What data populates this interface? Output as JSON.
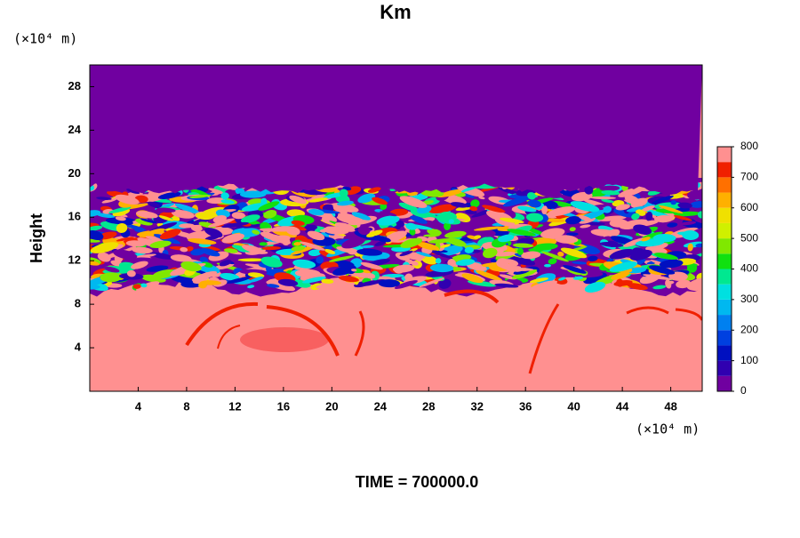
{
  "chart_data": {
    "type": "contour",
    "title": "Km",
    "y_label": "Height",
    "x_unit": "(×10⁴ m)",
    "y_unit": "(×10⁴ m)",
    "xlim": [
      0,
      50.6
    ],
    "xticks": [
      4,
      8,
      12,
      16,
      20,
      24,
      28,
      32,
      36,
      40,
      44,
      48
    ],
    "ylim": [
      0,
      30
    ],
    "yticks": [
      4,
      8,
      12,
      16,
      20,
      24,
      28
    ],
    "colorbar": {
      "lim": [
        0,
        800
      ],
      "ticks": [
        0,
        100,
        200,
        300,
        400,
        500,
        600,
        700,
        800
      ],
      "levels": [
        0,
        50,
        100,
        150,
        200,
        250,
        300,
        350,
        400,
        450,
        500,
        550,
        600,
        650,
        700,
        750,
        800
      ],
      "colors": [
        "#7000a0",
        "#3000b0",
        "#0010c0",
        "#0040e0",
        "#0080f0",
        "#00b8f0",
        "#00e0e0",
        "#00e890",
        "#10e010",
        "#80e800",
        "#d0f000",
        "#f0e000",
        "#ffb000",
        "#ff7000",
        "#f02000",
        "#ff9090"
      ]
    },
    "annotation": "TIME = 700000.0"
  }
}
